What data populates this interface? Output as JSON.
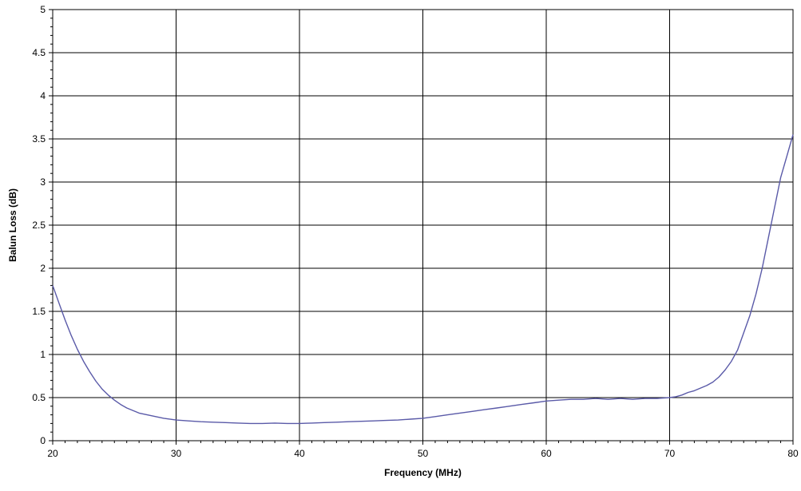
{
  "chart_data": {
    "type": "line",
    "xlabel": "Frequency (MHz)",
    "ylabel": "Balun Loss (dB)",
    "xlim": [
      20,
      80
    ],
    "ylim": [
      0,
      5
    ],
    "x_ticks": [
      20,
      30,
      40,
      50,
      60,
      70,
      80
    ],
    "y_ticks": [
      0,
      0.5,
      1,
      1.5,
      2,
      2.5,
      3,
      3.5,
      4,
      4.5,
      5
    ],
    "grid": true,
    "series": [
      {
        "color": "#5a5aa8",
        "x": [
          20,
          20.5,
          21,
          21.5,
          22,
          22.5,
          23,
          23.5,
          24,
          24.5,
          25,
          25.5,
          26,
          27,
          28,
          29,
          30,
          31,
          32,
          33,
          34,
          35,
          36,
          37,
          38,
          39,
          40,
          41,
          42,
          43,
          44,
          45,
          46,
          47,
          48,
          49,
          50,
          51,
          52,
          53,
          54,
          55,
          56,
          57,
          58,
          59,
          60,
          61,
          62,
          63,
          64,
          65,
          66,
          67,
          68,
          69,
          70,
          70.5,
          71,
          71.5,
          72,
          72.5,
          73,
          73.5,
          74,
          74.5,
          75,
          75.5,
          76,
          76.5,
          77,
          77.5,
          78,
          78.5,
          79,
          79.5,
          80
        ],
        "y": [
          1.8,
          1.6,
          1.4,
          1.22,
          1.06,
          0.92,
          0.8,
          0.69,
          0.6,
          0.53,
          0.47,
          0.42,
          0.38,
          0.32,
          0.29,
          0.26,
          0.24,
          0.23,
          0.22,
          0.215,
          0.21,
          0.205,
          0.2,
          0.2,
          0.205,
          0.2,
          0.2,
          0.205,
          0.21,
          0.215,
          0.22,
          0.225,
          0.23,
          0.235,
          0.24,
          0.25,
          0.26,
          0.28,
          0.3,
          0.32,
          0.34,
          0.36,
          0.38,
          0.4,
          0.42,
          0.44,
          0.46,
          0.47,
          0.48,
          0.48,
          0.49,
          0.48,
          0.49,
          0.48,
          0.49,
          0.49,
          0.5,
          0.51,
          0.53,
          0.56,
          0.58,
          0.61,
          0.64,
          0.68,
          0.74,
          0.82,
          0.92,
          1.05,
          1.25,
          1.45,
          1.7,
          2.0,
          2.35,
          2.7,
          3.05,
          3.3,
          3.55
        ]
      }
    ]
  }
}
